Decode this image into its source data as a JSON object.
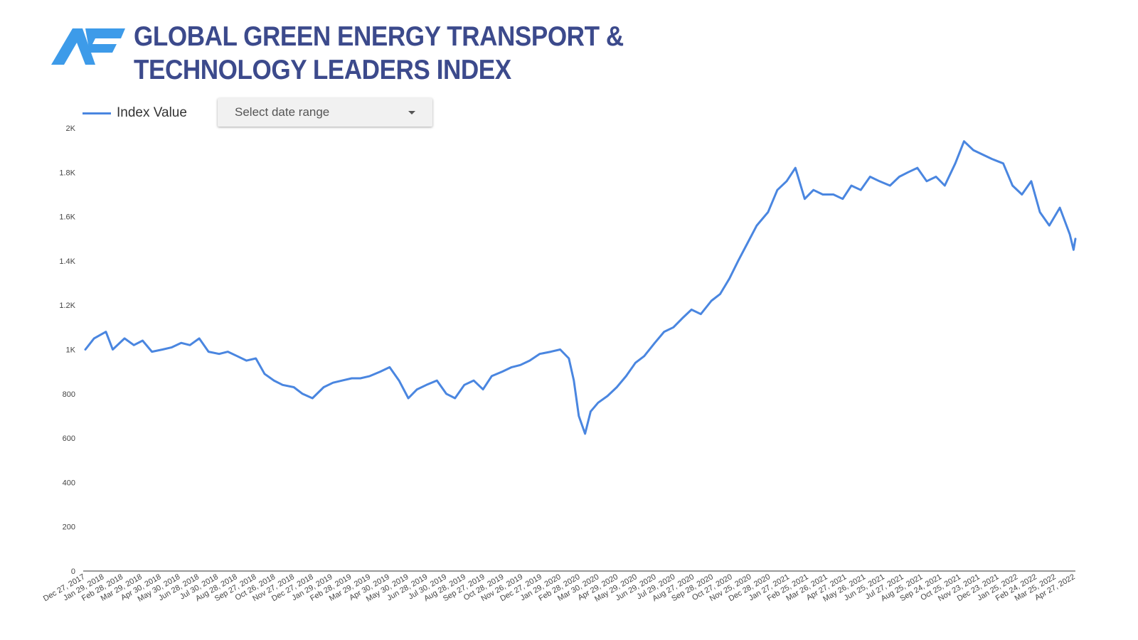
{
  "header": {
    "title_line1": "GLOBAL GREEN ENERGY TRANSPORT &",
    "title_line2": "TECHNOLOGY LEADERS INDEX",
    "logo_icon": "af-logo-icon"
  },
  "controls": {
    "date_range_placeholder": "Select date range",
    "date_range_icon": "caret-down-icon"
  },
  "colors": {
    "title": "#3c4a8c",
    "series": "#4a86e0",
    "logo": "#3d9be9"
  },
  "chart_data": {
    "type": "line",
    "title": "",
    "xlabel": "",
    "ylabel": "",
    "ylim": [
      0,
      2000
    ],
    "y_ticks": [
      {
        "value": 0,
        "label": "0"
      },
      {
        "value": 200,
        "label": "200"
      },
      {
        "value": 400,
        "label": "400"
      },
      {
        "value": 600,
        "label": "600"
      },
      {
        "value": 800,
        "label": "800"
      },
      {
        "value": 1000,
        "label": "1K"
      },
      {
        "value": 1200,
        "label": "1.2K"
      },
      {
        "value": 1400,
        "label": "1.4K"
      },
      {
        "value": 1600,
        "label": "1.6K"
      },
      {
        "value": 1800,
        "label": "1.8K"
      },
      {
        "value": 2000,
        "label": "2K"
      }
    ],
    "x_tick_labels": [
      "Dec 27, 2017",
      "Jan 29, 2018",
      "Feb 28, 2018",
      "Mar 29, 2018",
      "Apr 30, 2018",
      "May 30, 2018",
      "Jun 28, 2018",
      "Jul 30, 2018",
      "Aug 28, 2018",
      "Sep 27, 2018",
      "Oct 26, 2018",
      "Nov 27, 2018",
      "Dec 27, 2018",
      "Jan 29, 2019",
      "Feb 28, 2019",
      "Mar 29, 2019",
      "Apr 30, 2019",
      "May 30, 2019",
      "Jun 28, 2019",
      "Jul 30, 2019",
      "Aug 28, 2019",
      "Sep 27, 2019",
      "Oct 28, 2019",
      "Nov 26, 2019",
      "Dec 27, 2019",
      "Jan 29, 2020",
      "Feb 28, 2020",
      "Mar 30, 2020",
      "Apr 29, 2020",
      "May 29, 2020",
      "Jun 29, 2020",
      "Jul 29, 2020",
      "Aug 27, 2020",
      "Sep 28, 2020",
      "Oct 27, 2020",
      "Nov 25, 2020",
      "Dec 28, 2020",
      "Jan 27, 2021",
      "Feb 25, 2021",
      "Mar 26, 2021",
      "Apr 27, 2021",
      "May 26, 2021",
      "Jun 25, 2021",
      "Jul 27, 2021",
      "Aug 25, 2021",
      "Sep 24, 2021",
      "Oct 25, 2021",
      "Nov 23, 2021",
      "Dec 23, 2021",
      "Jan 25, 2022",
      "Feb 24, 2022",
      "Mar 25, 2022",
      "Apr 27, 2022"
    ],
    "legend": "top-left",
    "grid": false,
    "series": [
      {
        "name": "Index Value",
        "color": "#4a86e0",
        "x": [
          "2017-12-27",
          "2018-01-10",
          "2018-01-29",
          "2018-02-09",
          "2018-02-28",
          "2018-03-15",
          "2018-03-29",
          "2018-04-13",
          "2018-04-30",
          "2018-05-15",
          "2018-05-30",
          "2018-06-13",
          "2018-06-28",
          "2018-07-13",
          "2018-07-30",
          "2018-08-13",
          "2018-08-28",
          "2018-09-12",
          "2018-09-27",
          "2018-10-11",
          "2018-10-26",
          "2018-11-09",
          "2018-11-27",
          "2018-12-11",
          "2018-12-27",
          "2019-01-14",
          "2019-01-29",
          "2019-02-13",
          "2019-02-28",
          "2019-03-14",
          "2019-03-29",
          "2019-04-15",
          "2019-04-30",
          "2019-05-15",
          "2019-05-30",
          "2019-06-13",
          "2019-06-28",
          "2019-07-15",
          "2019-07-30",
          "2019-08-13",
          "2019-08-28",
          "2019-09-12",
          "2019-09-27",
          "2019-10-11",
          "2019-10-28",
          "2019-11-12",
          "2019-11-26",
          "2019-12-11",
          "2019-12-27",
          "2020-01-14",
          "2020-01-29",
          "2020-02-12",
          "2020-02-20",
          "2020-02-28",
          "2020-03-09",
          "2020-03-18",
          "2020-03-30",
          "2020-04-14",
          "2020-04-29",
          "2020-05-14",
          "2020-05-29",
          "2020-06-12",
          "2020-06-29",
          "2020-07-14",
          "2020-07-29",
          "2020-08-12",
          "2020-08-27",
          "2020-09-11",
          "2020-09-28",
          "2020-10-12",
          "2020-10-27",
          "2020-11-10",
          "2020-11-25",
          "2020-12-10",
          "2020-12-28",
          "2021-01-12",
          "2021-01-27",
          "2021-02-10",
          "2021-02-25",
          "2021-03-11",
          "2021-03-26",
          "2021-04-12",
          "2021-04-27",
          "2021-05-11",
          "2021-05-26",
          "2021-06-10",
          "2021-06-25",
          "2021-07-12",
          "2021-07-27",
          "2021-08-10",
          "2021-08-25",
          "2021-09-09",
          "2021-09-24",
          "2021-10-08",
          "2021-10-25",
          "2021-11-08",
          "2021-11-23",
          "2021-12-08",
          "2021-12-23",
          "2022-01-10",
          "2022-01-25",
          "2022-02-09",
          "2022-02-24",
          "2022-03-10",
          "2022-03-25",
          "2022-04-11",
          "2022-04-27",
          "2022-05-03",
          "2022-05-06"
        ],
        "values": [
          1000,
          1050,
          1080,
          1000,
          1050,
          1020,
          1040,
          990,
          1000,
          1010,
          1030,
          1020,
          1050,
          990,
          980,
          990,
          970,
          950,
          960,
          890,
          860,
          840,
          830,
          800,
          780,
          830,
          850,
          860,
          870,
          870,
          880,
          900,
          920,
          860,
          780,
          820,
          840,
          860,
          800,
          780,
          840,
          860,
          820,
          880,
          900,
          920,
          930,
          950,
          980,
          990,
          1000,
          960,
          860,
          700,
          620,
          720,
          760,
          790,
          830,
          880,
          940,
          970,
          1030,
          1080,
          1100,
          1140,
          1180,
          1160,
          1220,
          1250,
          1320,
          1400,
          1480,
          1560,
          1620,
          1720,
          1760,
          1820,
          1680,
          1720,
          1700,
          1700,
          1680,
          1740,
          1720,
          1780,
          1760,
          1740,
          1780,
          1800,
          1820,
          1760,
          1780,
          1740,
          1840,
          1940,
          1900,
          1880,
          1860,
          1840,
          1740,
          1700,
          1760,
          1620,
          1560,
          1640,
          1520,
          1450,
          1500
        ]
      }
    ]
  }
}
